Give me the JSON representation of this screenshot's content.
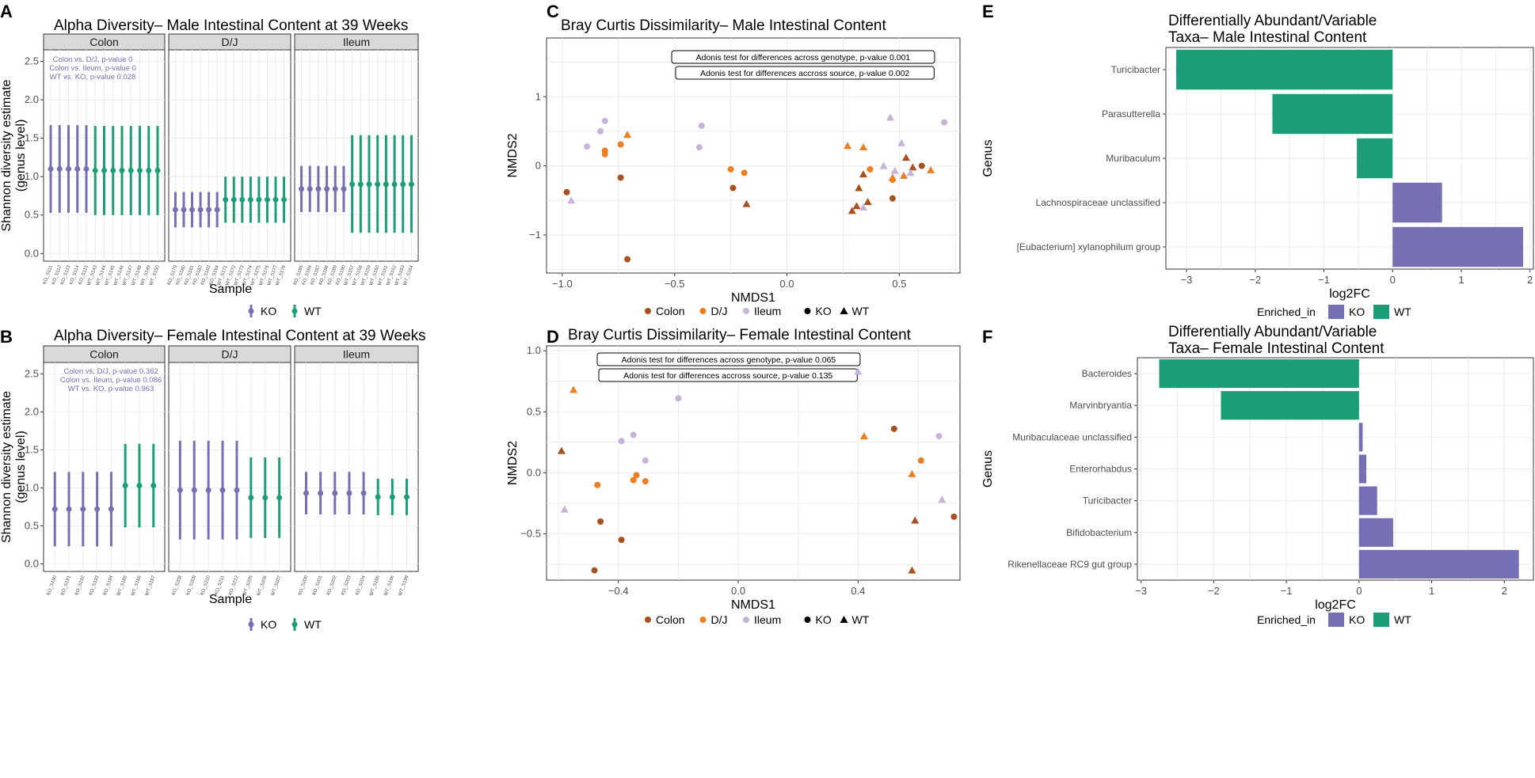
{
  "colors": {
    "KO": "#7570b3",
    "WT": "#1b9e77",
    "Colon": "#a6511f",
    "DJ": "#ec7f22",
    "Ileum": "#c7b2d9",
    "grid": "#ebebeb",
    "strip": "#d9d9d9"
  },
  "chart_data": [
    {
      "panel": "A",
      "type": "errorbar",
      "title": "Alpha Diversity– Male Intestinal Content at 39 Weeks",
      "xlabel": "Sample",
      "ylabel": "Shannon diversity estimate",
      "ylabel2": "(genus level)",
      "yticks": [
        "0.0",
        "0.5",
        "1.0",
        "1.5",
        "2.0",
        "2.5"
      ],
      "ylim": [
        -0.1,
        2.65
      ],
      "annotation": [
        "Colon vs. D/J, p-value 0",
        "Colon vs. Ileum, p-value 0",
        "WT vs. KO, p-value 0.028"
      ],
      "legend": [
        "KO",
        "WT"
      ],
      "facets": [
        {
          "label": "Colon",
          "samples": [
            "KO_S111",
            "KO_S112",
            "KO_S113",
            "KO_S114",
            "KO_S115",
            "WT_S143",
            "WT_S144",
            "WT_S145",
            "WT_S146",
            "WT_S147",
            "WT_S148",
            "WT_S149",
            "WT_S150"
          ],
          "mean": [
            1.1,
            1.1,
            1.1,
            1.1,
            1.1,
            1.08,
            1.08,
            1.08,
            1.08,
            1.08,
            1.08,
            1.08,
            1.08
          ],
          "lower": [
            0.53,
            0.53,
            0.53,
            0.53,
            0.53,
            0.5,
            0.5,
            0.5,
            0.5,
            0.5,
            0.5,
            0.5,
            0.5
          ],
          "upper": [
            1.67,
            1.67,
            1.67,
            1.67,
            1.67,
            1.66,
            1.66,
            1.66,
            1.66,
            1.66,
            1.66,
            1.66,
            1.66
          ]
        },
        {
          "label": "D/J",
          "samples": [
            "KO_S179",
            "KO_S180",
            "KO_S181",
            "KO_S182",
            "KO_S183",
            "KO_S184",
            "WT_S171",
            "WT_S172",
            "WT_S173",
            "WT_S174",
            "WT_S175",
            "WT_S176",
            "WT_S177",
            "WT_S178"
          ],
          "mean": [
            0.57,
            0.57,
            0.57,
            0.57,
            0.57,
            0.57,
            0.7,
            0.7,
            0.7,
            0.7,
            0.7,
            0.7,
            0.7,
            0.7
          ],
          "lower": [
            0.34,
            0.34,
            0.34,
            0.34,
            0.34,
            0.34,
            0.4,
            0.4,
            0.4,
            0.4,
            0.4,
            0.4,
            0.4,
            0.4
          ],
          "upper": [
            0.8,
            0.8,
            0.8,
            0.8,
            0.8,
            0.8,
            1.0,
            1.0,
            1.0,
            1.0,
            1.0,
            1.0,
            1.0,
            1.0
          ]
        },
        {
          "label": "Ileum",
          "samples": [
            "KO_S185",
            "KO_S186",
            "KO_S187",
            "KO_S188",
            "KO_S189",
            "KO_S190",
            "WT_S157",
            "WT_S158",
            "WT_S159",
            "WT_S160",
            "WT_S161",
            "WT_S162",
            "WT_S163",
            "WT_S164"
          ],
          "mean": [
            0.84,
            0.84,
            0.84,
            0.84,
            0.84,
            0.84,
            0.9,
            0.9,
            0.9,
            0.9,
            0.9,
            0.9,
            0.9,
            0.9
          ],
          "lower": [
            0.54,
            0.54,
            0.54,
            0.54,
            0.54,
            0.54,
            0.27,
            0.27,
            0.27,
            0.27,
            0.27,
            0.27,
            0.27,
            0.27
          ],
          "upper": [
            1.14,
            1.14,
            1.14,
            1.14,
            1.14,
            1.14,
            1.54,
            1.54,
            1.54,
            1.54,
            1.54,
            1.54,
            1.54,
            1.54
          ]
        }
      ]
    },
    {
      "panel": "B",
      "type": "errorbar",
      "title": "Alpha Diversity– Female Intestinal Content at 39 Weeks",
      "xlabel": "Sample",
      "ylabel": "Shannon diversity estimate",
      "ylabel2": "(genus level)",
      "yticks": [
        "0.0",
        "0.5",
        "1.0",
        "1.5",
        "2.0",
        "2.5"
      ],
      "ylim": [
        -0.1,
        2.65
      ],
      "annotation": [
        "Colon vs. D/J, p-value 0.362",
        "Colon vs. Ileum, p-value 0.086",
        "WT vs. KO, p-value 0.963"
      ],
      "legend": [
        "KO",
        "WT"
      ],
      "facets": [
        {
          "label": "Colon",
          "samples": [
            "KO_S190",
            "KO_S191",
            "KO_S192",
            "KO_S193",
            "KO_S194",
            "WT_S185",
            "WT_S186",
            "WT_S187"
          ],
          "mean": [
            0.72,
            0.72,
            0.72,
            0.72,
            0.72,
            1.03,
            1.03,
            1.03
          ],
          "lower": [
            0.23,
            0.23,
            0.23,
            0.23,
            0.23,
            0.48,
            0.48,
            0.48
          ],
          "upper": [
            1.21,
            1.21,
            1.21,
            1.21,
            1.21,
            1.58,
            1.58,
            1.58
          ]
        },
        {
          "label": "D/J",
          "samples": [
            "KO_S208",
            "KO_S209",
            "KO_S210",
            "KO_S211",
            "KO_S212",
            "WT_S205",
            "WT_S206",
            "WT_S207"
          ],
          "mean": [
            0.97,
            0.97,
            0.97,
            0.97,
            0.97,
            0.87,
            0.87,
            0.87
          ],
          "lower": [
            0.32,
            0.32,
            0.32,
            0.32,
            0.32,
            0.34,
            0.34,
            0.34
          ],
          "upper": [
            1.62,
            1.62,
            1.62,
            1.62,
            1.62,
            1.4,
            1.4,
            1.4
          ]
        },
        {
          "label": "Ileum",
          "samples": [
            "KO_S200",
            "KO_S201",
            "KO_S202",
            "KO_S203",
            "KO_S204",
            "WT_S195",
            "WT_S196",
            "WT_S199"
          ],
          "mean": [
            0.93,
            0.93,
            0.93,
            0.93,
            0.93,
            0.88,
            0.88,
            0.88
          ],
          "lower": [
            0.65,
            0.65,
            0.65,
            0.65,
            0.65,
            0.64,
            0.64,
            0.64
          ],
          "upper": [
            1.21,
            1.21,
            1.21,
            1.21,
            1.21,
            1.12,
            1.12,
            1.12
          ]
        }
      ]
    },
    {
      "panel": "C",
      "type": "scatter",
      "title": "Bray Curtis Dissimilarity– Male Intestinal Content",
      "xlabel": "NMDS1",
      "ylabel": "NMDS2",
      "xlim": [
        -1.07,
        0.77
      ],
      "ylim": [
        -1.55,
        1.85
      ],
      "xticks": [
        -1.0,
        -0.5,
        0.0,
        0.5
      ],
      "yticks": [
        -1,
        0,
        1
      ],
      "xticklabels": [
        "−1.0",
        "−0.5",
        "0.0",
        "0.5"
      ],
      "yticklabels": [
        "−1",
        "0",
        "1"
      ],
      "annotations": [
        "Adonis test for differences across genotype, p-value 0.001",
        "Adonis test for differences accross source, p-value 0.002"
      ],
      "legend_source": [
        "Colon",
        "D/J",
        "Ileum"
      ],
      "legend_genotype": [
        "KO",
        "WT"
      ],
      "points": [
        {
          "x": -0.98,
          "y": -0.38,
          "source": "Colon",
          "genotype": "KO"
        },
        {
          "x": -0.71,
          "y": -1.35,
          "source": "Colon",
          "genotype": "KO"
        },
        {
          "x": -0.74,
          "y": -0.17,
          "source": "Colon",
          "genotype": "KO"
        },
        {
          "x": -0.24,
          "y": -0.32,
          "source": "Colon",
          "genotype": "KO"
        },
        {
          "x": 0.47,
          "y": -0.47,
          "source": "Colon",
          "genotype": "KO"
        },
        {
          "x": 0.6,
          "y": 0.0,
          "source": "Colon",
          "genotype": "KO"
        },
        {
          "x": -0.18,
          "y": -0.55,
          "source": "Colon",
          "genotype": "WT"
        },
        {
          "x": 0.29,
          "y": -0.65,
          "source": "Colon",
          "genotype": "WT"
        },
        {
          "x": 0.32,
          "y": -0.32,
          "source": "Colon",
          "genotype": "WT"
        },
        {
          "x": 0.36,
          "y": -0.52,
          "source": "Colon",
          "genotype": "WT"
        },
        {
          "x": 0.31,
          "y": -0.58,
          "source": "Colon",
          "genotype": "WT"
        },
        {
          "x": 0.34,
          "y": -0.12,
          "source": "Colon",
          "genotype": "WT"
        },
        {
          "x": 0.53,
          "y": 0.12,
          "source": "Colon",
          "genotype": "WT"
        },
        {
          "x": 0.56,
          "y": -0.02,
          "source": "Colon",
          "genotype": "WT"
        },
        {
          "x": -0.81,
          "y": 0.22,
          "source": "DJ",
          "genotype": "KO"
        },
        {
          "x": -0.81,
          "y": 0.17,
          "source": "DJ",
          "genotype": "KO"
        },
        {
          "x": -0.74,
          "y": 0.31,
          "source": "DJ",
          "genotype": "KO"
        },
        {
          "x": -0.25,
          "y": -0.05,
          "source": "DJ",
          "genotype": "KO"
        },
        {
          "x": -0.19,
          "y": -0.1,
          "source": "DJ",
          "genotype": "KO"
        },
        {
          "x": 0.37,
          "y": -0.05,
          "source": "DJ",
          "genotype": "KO"
        },
        {
          "x": 0.47,
          "y": -0.2,
          "source": "DJ",
          "genotype": "KO"
        },
        {
          "x": -0.71,
          "y": 0.45,
          "source": "DJ",
          "genotype": "WT"
        },
        {
          "x": 0.27,
          "y": 0.29,
          "source": "DJ",
          "genotype": "WT"
        },
        {
          "x": 0.34,
          "y": 0.27,
          "source": "DJ",
          "genotype": "WT"
        },
        {
          "x": 0.47,
          "y": -0.17,
          "source": "DJ",
          "genotype": "WT"
        },
        {
          "x": 0.52,
          "y": -0.14,
          "source": "DJ",
          "genotype": "WT"
        },
        {
          "x": 0.64,
          "y": -0.06,
          "source": "DJ",
          "genotype": "WT"
        },
        {
          "x": -0.83,
          "y": 0.5,
          "source": "Ileum",
          "genotype": "KO"
        },
        {
          "x": -0.81,
          "y": 0.65,
          "source": "Ileum",
          "genotype": "KO"
        },
        {
          "x": -0.89,
          "y": 0.28,
          "source": "Ileum",
          "genotype": "KO"
        },
        {
          "x": -0.38,
          "y": 0.58,
          "source": "Ileum",
          "genotype": "KO"
        },
        {
          "x": -0.39,
          "y": 0.27,
          "source": "Ileum",
          "genotype": "KO"
        },
        {
          "x": 0.7,
          "y": 0.63,
          "source": "Ileum",
          "genotype": "KO"
        },
        {
          "x": -0.96,
          "y": -0.5,
          "source": "Ileum",
          "genotype": "WT"
        },
        {
          "x": 0.46,
          "y": 0.7,
          "source": "Ileum",
          "genotype": "WT"
        },
        {
          "x": 0.51,
          "y": 0.33,
          "source": "Ileum",
          "genotype": "WT"
        },
        {
          "x": 0.43,
          "y": 0.0,
          "source": "Ileum",
          "genotype": "WT"
        },
        {
          "x": 0.48,
          "y": -0.07,
          "source": "Ileum",
          "genotype": "WT"
        },
        {
          "x": 0.34,
          "y": -0.6,
          "source": "Ileum",
          "genotype": "WT"
        },
        {
          "x": 0.55,
          "y": -0.1,
          "source": "Ileum",
          "genotype": "WT"
        }
      ]
    },
    {
      "panel": "D",
      "type": "scatter",
      "title": "Bray Curtis Dissimilarity– Female Intestinal Content",
      "xlabel": "NMDS1",
      "ylabel": "NMDS2",
      "xlim": [
        -0.64,
        0.74
      ],
      "ylim": [
        -0.88,
        1.04
      ],
      "xticks": [
        -0.4,
        0.0,
        0.4
      ],
      "yticks": [
        -0.5,
        0.0,
        0.5,
        1.0
      ],
      "xticklabels": [
        "−0.4",
        "0.0",
        "0.4"
      ],
      "yticklabels": [
        "−0.5",
        "0.0",
        "0.5",
        "1.0"
      ],
      "annotations": [
        "Adonis test for differences across genotype, p-value 0.065",
        "Adonis test for differences accross source, p-value 0.135"
      ],
      "legend_source": [
        "Colon",
        "D/J",
        "Ileum"
      ],
      "legend_genotype": [
        "KO",
        "WT"
      ],
      "points": [
        {
          "x": -0.46,
          "y": -0.4,
          "source": "Colon",
          "genotype": "KO"
        },
        {
          "x": -0.39,
          "y": -0.55,
          "source": "Colon",
          "genotype": "KO"
        },
        {
          "x": -0.48,
          "y": -0.8,
          "source": "Colon",
          "genotype": "KO"
        },
        {
          "x": 0.52,
          "y": 0.36,
          "source": "Colon",
          "genotype": "KO"
        },
        {
          "x": 0.72,
          "y": -0.36,
          "source": "Colon",
          "genotype": "KO"
        },
        {
          "x": -0.59,
          "y": 0.18,
          "source": "Colon",
          "genotype": "WT"
        },
        {
          "x": 0.59,
          "y": -0.39,
          "source": "Colon",
          "genotype": "WT"
        },
        {
          "x": 0.58,
          "y": -0.8,
          "source": "Colon",
          "genotype": "WT"
        },
        {
          "x": -0.47,
          "y": -0.1,
          "source": "DJ",
          "genotype": "KO"
        },
        {
          "x": -0.34,
          "y": -0.02,
          "source": "DJ",
          "genotype": "KO"
        },
        {
          "x": -0.35,
          "y": -0.06,
          "source": "DJ",
          "genotype": "KO"
        },
        {
          "x": -0.31,
          "y": -0.07,
          "source": "DJ",
          "genotype": "KO"
        },
        {
          "x": 0.61,
          "y": 0.1,
          "source": "DJ",
          "genotype": "KO"
        },
        {
          "x": -0.55,
          "y": 0.68,
          "source": "DJ",
          "genotype": "WT"
        },
        {
          "x": 0.42,
          "y": 0.3,
          "source": "DJ",
          "genotype": "WT"
        },
        {
          "x": 0.58,
          "y": -0.01,
          "source": "DJ",
          "genotype": "WT"
        },
        {
          "x": -0.2,
          "y": 0.61,
          "source": "Ileum",
          "genotype": "KO"
        },
        {
          "x": -0.39,
          "y": 0.26,
          "source": "Ileum",
          "genotype": "KO"
        },
        {
          "x": -0.35,
          "y": 0.31,
          "source": "Ileum",
          "genotype": "KO"
        },
        {
          "x": -0.31,
          "y": 0.1,
          "source": "Ileum",
          "genotype": "KO"
        },
        {
          "x": 0.67,
          "y": 0.3,
          "source": "Ileum",
          "genotype": "KO"
        },
        {
          "x": -0.58,
          "y": -0.3,
          "source": "Ileum",
          "genotype": "WT"
        },
        {
          "x": 0.4,
          "y": 0.83,
          "source": "Ileum",
          "genotype": "WT"
        },
        {
          "x": 0.68,
          "y": -0.22,
          "source": "Ileum",
          "genotype": "WT"
        }
      ]
    },
    {
      "panel": "E",
      "type": "bar",
      "orientation": "horizontal",
      "title": "Differentially Abundant/Variable",
      "title2": "Taxa– Male Intestinal Content",
      "xlabel": "log2FC",
      "ylabel": "Genus",
      "xlim": [
        -3.3,
        2.05
      ],
      "xticks": [
        -3,
        -2,
        -1,
        0,
        1,
        2
      ],
      "xticklabels": [
        "−3",
        "−2",
        "−1",
        "0",
        "1",
        "2"
      ],
      "legend_title": "Enriched_in",
      "legend": [
        "KO",
        "WT"
      ],
      "categories": [
        "Turicibacter",
        "Parasutterella",
        "Muribaculum",
        "Lachnospiraceae unclassified",
        "[Eubacterium] xylanophilum group"
      ],
      "values": [
        -3.15,
        -1.75,
        -0.52,
        0.72,
        1.9
      ],
      "enriched_in": [
        "WT",
        "WT",
        "WT",
        "KO",
        "KO"
      ]
    },
    {
      "panel": "F",
      "type": "bar",
      "orientation": "horizontal",
      "title": "Differentially Abundant/Variable",
      "title2": "Taxa– Female Intestinal Content",
      "xlabel": "log2FC",
      "ylabel": "Genus",
      "xlim": [
        -3.05,
        2.4
      ],
      "xticks": [
        -3,
        -2,
        -1,
        0,
        1,
        2
      ],
      "xticklabels": [
        "−3",
        "−2",
        "−1",
        "0",
        "1",
        "2"
      ],
      "legend_title": "Enriched_in",
      "legend": [
        "KO",
        "WT"
      ],
      "categories": [
        "Bacteroides",
        "Marvinbryantia",
        "Muribaculaceae unclassified",
        "Enterorhabdus",
        "Turicibacter",
        "Bifidobacterium",
        "Rikenellaceae RC9 gut group"
      ],
      "values": [
        -2.75,
        -1.9,
        0.05,
        0.1,
        0.25,
        0.47,
        2.2
      ],
      "enriched_in": [
        "WT",
        "WT",
        "KO",
        "KO",
        "KO",
        "KO",
        "KO"
      ]
    }
  ]
}
